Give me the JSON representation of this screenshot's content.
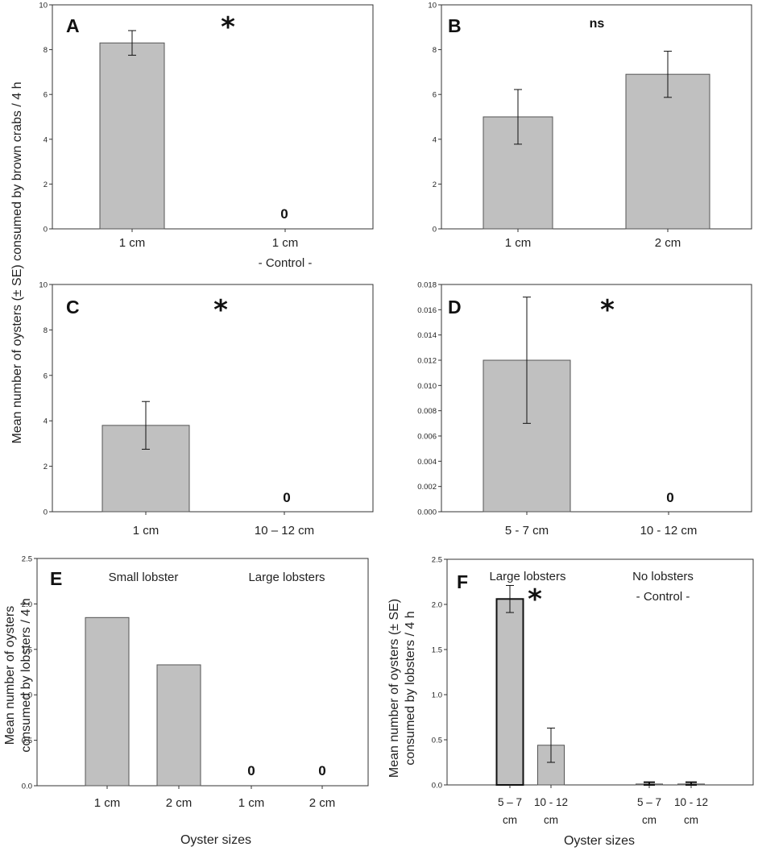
{
  "shared": {
    "ylabel_crabs": "Mean number of oysters (± SE) consumed by brown crabs / 4 h",
    "ylabel_E_line1": "Mean number of oysters",
    "ylabel_E_line2": "consumed by lobsters / 4 h",
    "ylabel_F_line1": "Mean number of oysters (± SE)",
    "ylabel_F_line2": "consumed by lobsters / 4 h",
    "xlabel_E": "Oyster sizes",
    "xlabel_F": "Oyster sizes"
  },
  "chart_data": [
    {
      "panel": "A",
      "type": "bar",
      "ylim": [
        0,
        10
      ],
      "yticks": [
        "0",
        "2",
        "4",
        "6",
        "8",
        "10"
      ],
      "categories": [
        [
          "1 cm"
        ],
        [
          "1 cm",
          "- Control -"
        ]
      ],
      "values": [
        8.3,
        0
      ],
      "errors": [
        0.55,
        null
      ],
      "zero_labels": [
        "",
        "0"
      ],
      "annotation": "*"
    },
    {
      "panel": "B",
      "type": "bar",
      "ylim": [
        0,
        10
      ],
      "yticks": [
        "0",
        "2",
        "4",
        "6",
        "8",
        "10"
      ],
      "categories": [
        [
          "1 cm"
        ],
        [
          "2 cm"
        ]
      ],
      "values": [
        5.0,
        6.9
      ],
      "errors": [
        1.22,
        1.03
      ],
      "zero_labels": [
        "",
        ""
      ],
      "annotation": "ns"
    },
    {
      "panel": "C",
      "type": "bar",
      "ylim": [
        0,
        10
      ],
      "yticks": [
        "0",
        "2",
        "4",
        "6",
        "8",
        "10"
      ],
      "categories": [
        [
          "1 cm"
        ],
        [
          "10 – 12 cm"
        ]
      ],
      "values": [
        3.8,
        0
      ],
      "errors": [
        1.05,
        null
      ],
      "zero_labels": [
        "",
        "0"
      ],
      "annotation": "*"
    },
    {
      "panel": "D",
      "type": "bar",
      "ylim": [
        0,
        0.018
      ],
      "yticks": [
        "0.000",
        "0.002",
        "0.004",
        "0.006",
        "0.008",
        "0.010",
        "0.012",
        "0.014",
        "0.016",
        "0.018"
      ],
      "categories": [
        [
          "5 - 7 cm"
        ],
        [
          "10 - 12 cm"
        ]
      ],
      "values": [
        0.012,
        0
      ],
      "errors": [
        0.005,
        null
      ],
      "zero_labels": [
        "",
        "0"
      ],
      "annotation": "*"
    },
    {
      "panel": "E",
      "type": "bar",
      "ylim": [
        0,
        2.5
      ],
      "yticks": [
        "0.0",
        "0.5",
        "1.0",
        "1.5",
        "2.0",
        "2.5"
      ],
      "categories": [
        [
          "1 cm"
        ],
        [
          "2 cm"
        ],
        [
          "1 cm"
        ],
        [
          "2 cm"
        ]
      ],
      "values": [
        1.85,
        1.33,
        0,
        0
      ],
      "errors": [
        null,
        null,
        null,
        null
      ],
      "zero_labels": [
        "",
        "",
        "0",
        "0"
      ],
      "groups": [
        "Small lobster",
        "Large lobsters"
      ]
    },
    {
      "panel": "F",
      "type": "bar",
      "ylim": [
        0,
        2.5
      ],
      "yticks": [
        "0.0",
        "0.5",
        "1.0",
        "1.5",
        "2.0",
        "2.5"
      ],
      "categories": [
        [
          "5 – 7",
          "cm"
        ],
        [
          "10 - 12",
          "cm"
        ],
        [
          "5 – 7",
          "cm"
        ],
        [
          "10 - 12",
          "cm"
        ]
      ],
      "values": [
        2.06,
        0.44,
        0.01,
        0.01
      ],
      "errors": [
        0.15,
        0.19,
        0.02,
        0.02
      ],
      "zero_labels": [
        "",
        "",
        "",
        ""
      ],
      "groups": [
        "Large lobsters",
        "No lobsters",
        "- Control -"
      ],
      "annotation": "*"
    }
  ]
}
